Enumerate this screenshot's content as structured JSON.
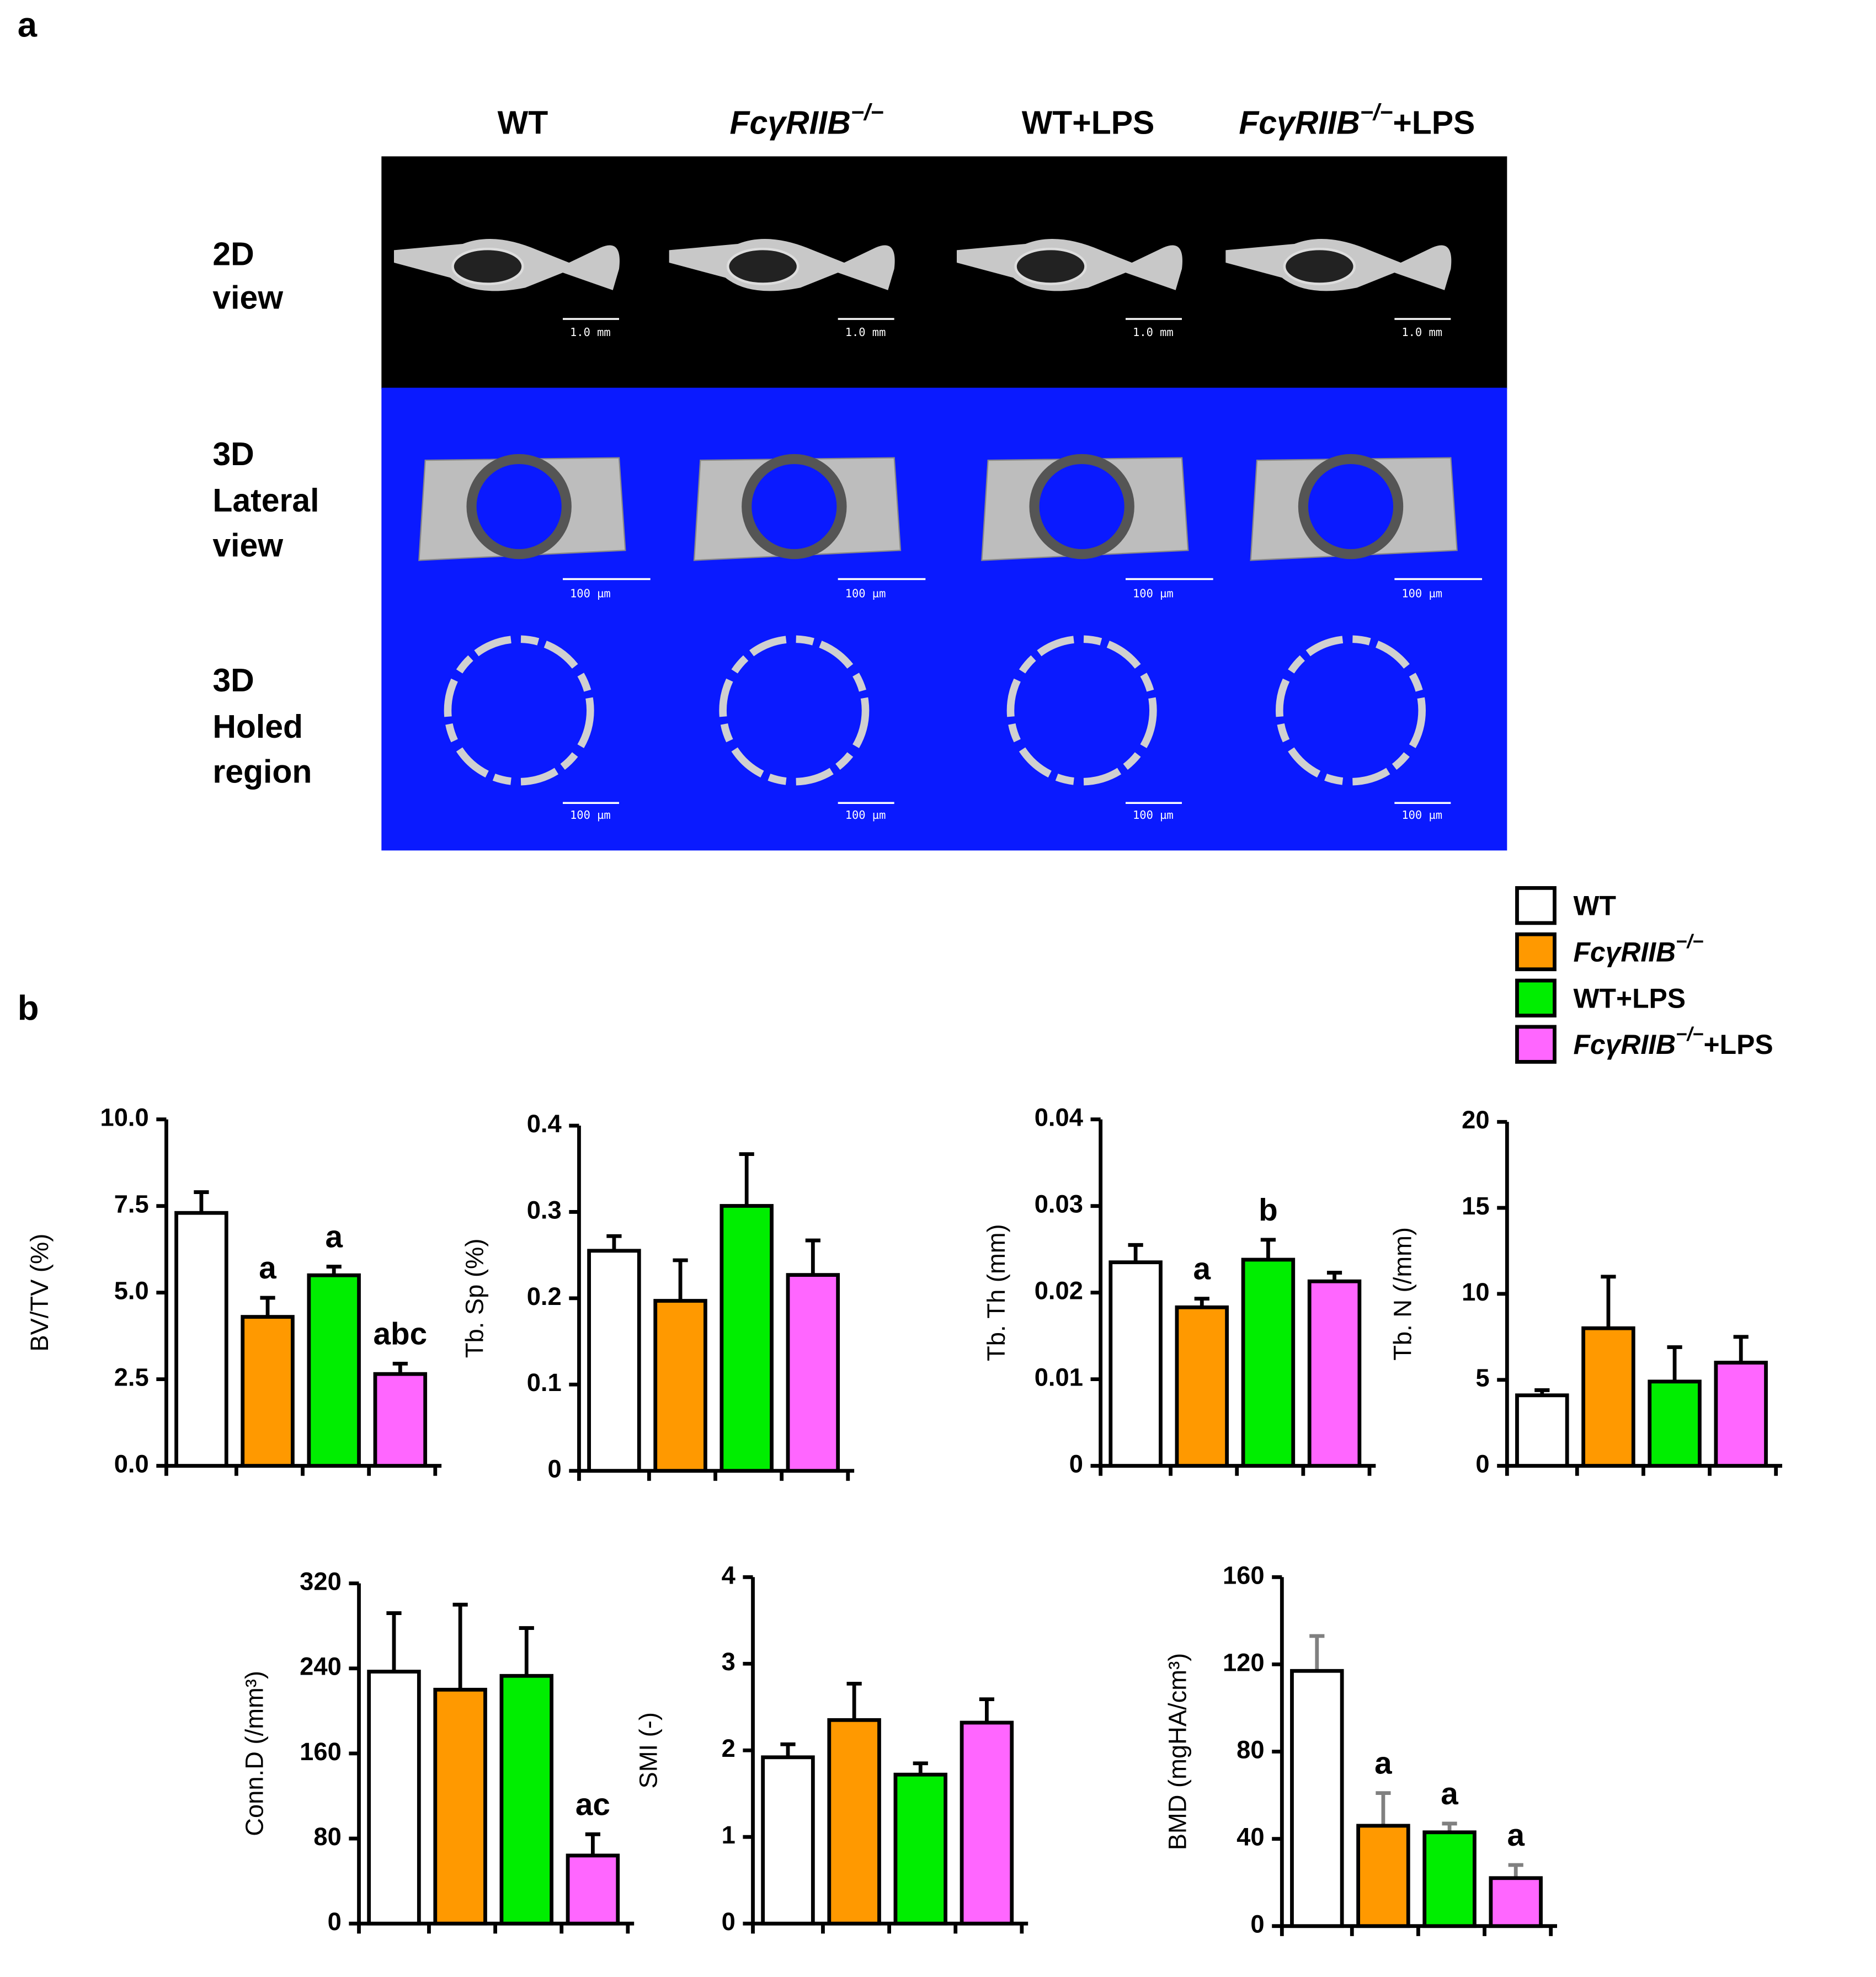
{
  "figure": {
    "panel_labels": [
      "a",
      "b"
    ],
    "panel_a": {
      "columns": [
        {
          "text": "WT"
        },
        {
          "gene": "FcγRIIB",
          "sup": "−/−"
        },
        {
          "text": "WT+LPS"
        },
        {
          "gene": "FcγRIIB",
          "sup": "−/−",
          "suffix": "+LPS"
        }
      ],
      "rows": [
        [
          "2D",
          "view"
        ],
        [
          "3D",
          "Lateral",
          "view"
        ],
        [
          "3D",
          "Holed",
          "region"
        ]
      ],
      "scale_bars": [
        "1.0 mm",
        "100 µm",
        "100 µm"
      ]
    },
    "legend": [
      {
        "text": "WT",
        "color": "#ffffff"
      },
      {
        "gene": "FcγRIIB",
        "sup": "−/−",
        "color": "#ff9900"
      },
      {
        "text": "WT+LPS",
        "color": "#00ee00"
      },
      {
        "gene": "FcγRIIB",
        "sup": "−/−",
        "suffix": "+LPS",
        "color": "#ff66ff"
      }
    ]
  },
  "chart_data": [
    {
      "type": "bar",
      "ylabel": "BV/TV (%)",
      "values": [
        7.3,
        4.3,
        5.5,
        2.65
      ],
      "errors": [
        0.6,
        0.55,
        0.25,
        0.3
      ],
      "colors": [
        "#ffffff",
        "#ff9900",
        "#00ee00",
        "#ff66ff"
      ],
      "error_color": "#000000",
      "annotations": [
        null,
        "a",
        "a",
        "abc"
      ],
      "ylim": [
        0,
        10
      ],
      "yticks": [
        {
          "value": 0,
          "label": "0.0"
        },
        2.5,
        {
          "value": 5,
          "label": "5.0"
        },
        7.5,
        {
          "value": 10,
          "label": "10.0"
        }
      ]
    },
    {
      "type": "bar",
      "ylabel": "Tb. Sp (%)",
      "values": [
        0.255,
        0.197,
        0.307,
        0.227
      ],
      "errors": [
        0.017,
        0.047,
        0.06,
        0.04
      ],
      "colors": [
        "#ffffff",
        "#ff9900",
        "#00ee00",
        "#ff66ff"
      ],
      "error_color": "#000000",
      "annotations": [
        null,
        null,
        null,
        null
      ],
      "ylim": [
        0,
        0.4
      ],
      "yticks": [
        0,
        0.1,
        0.2,
        0.3,
        0.4
      ]
    },
    {
      "type": "bar",
      "ylabel": "Tb. Th (mm)",
      "values": [
        0.0235,
        0.0183,
        0.0238,
        0.0213
      ],
      "errors": [
        0.002,
        0.001,
        0.0023,
        0.001
      ],
      "colors": [
        "#ffffff",
        "#ff9900",
        "#00ee00",
        "#ff66ff"
      ],
      "error_color": "#000000",
      "annotations": [
        null,
        "a",
        "b",
        null
      ],
      "ylim": [
        0,
        0.04
      ],
      "yticks": [
        0,
        0.01,
        0.02,
        0.03,
        0.04
      ]
    },
    {
      "type": "bar",
      "ylabel": "Tb. N (/mm)",
      "values": [
        4.1,
        8.0,
        4.9,
        6.0
      ],
      "errors": [
        0.3,
        3.0,
        2.0,
        1.5
      ],
      "colors": [
        "#ffffff",
        "#ff9900",
        "#00ee00",
        "#ff66ff"
      ],
      "error_color": "#000000",
      "annotations": [
        null,
        null,
        null,
        null
      ],
      "ylim": [
        0,
        20
      ],
      "yticks": [
        0,
        5,
        10,
        15,
        20
      ]
    },
    {
      "type": "bar",
      "ylabel": "Conn.D (/mm³)",
      "values": [
        237,
        220,
        233,
        64
      ],
      "errors": [
        55,
        80,
        45,
        20
      ],
      "colors": [
        "#ffffff",
        "#ff9900",
        "#00ee00",
        "#ff66ff"
      ],
      "error_color": "#000000",
      "annotations": [
        null,
        null,
        null,
        "ac"
      ],
      "ylim": [
        0,
        320
      ],
      "yticks": [
        0,
        80,
        160,
        240,
        320
      ]
    },
    {
      "type": "bar",
      "ylabel": "SMI (-)",
      "values": [
        1.92,
        2.35,
        1.72,
        2.32
      ],
      "errors": [
        0.15,
        0.42,
        0.13,
        0.27
      ],
      "colors": [
        "#ffffff",
        "#ff9900",
        "#00ee00",
        "#ff66ff"
      ],
      "error_color": "#000000",
      "annotations": [
        null,
        null,
        null,
        null
      ],
      "ylim": [
        0,
        4
      ],
      "yticks": [
        0,
        1,
        2,
        3,
        4
      ]
    },
    {
      "type": "bar",
      "ylabel": "BMD (mgHA/cm³)",
      "values": [
        117,
        46,
        43,
        22
      ],
      "errors": [
        16,
        15,
        4,
        6
      ],
      "colors": [
        "#ffffff",
        "#ff9900",
        "#00ee00",
        "#ff66ff"
      ],
      "error_color": "#808080",
      "annotations": [
        null,
        "a",
        "a",
        "a"
      ],
      "ylim": [
        0,
        160
      ],
      "yticks": [
        0,
        40,
        80,
        120,
        160
      ]
    }
  ]
}
